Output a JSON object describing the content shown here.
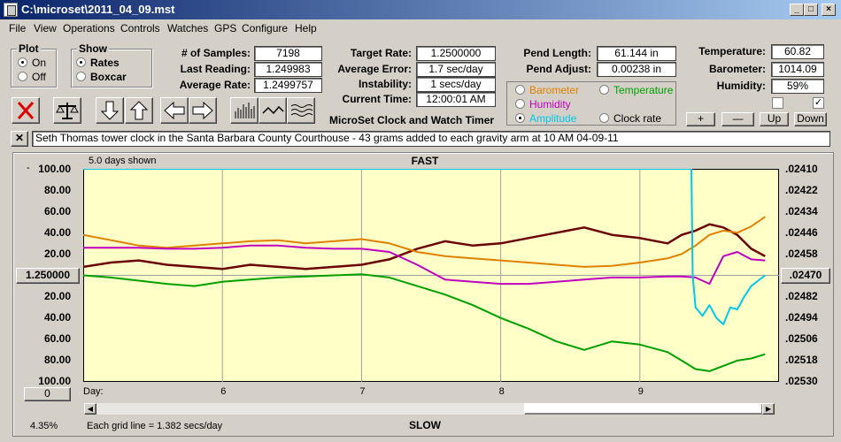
{
  "window": {
    "title": "C:\\microset\\2011_04_09.mst"
  },
  "menu": [
    "File",
    "View",
    "Operations",
    "Controls",
    "Watches",
    "GPS",
    "Configure",
    "Help"
  ],
  "plot_group": {
    "label": "Plot",
    "on": "On",
    "off": "Off",
    "selected": "On"
  },
  "show_group": {
    "label": "Show",
    "rates": "Rates",
    "boxcar": "Boxcar",
    "selected": "Rates"
  },
  "stats": {
    "samples_label": "# of Samples:",
    "samples": "7198",
    "last_label": "Last Reading:",
    "last": "1.249983",
    "avg_rate_label": "Average Rate:",
    "avg_rate": "1.2499757",
    "target_label": "Target Rate:",
    "target": "1.2500000",
    "avg_err_label": "Average Error:",
    "avg_err": "1.7 sec/day",
    "instab_label": "Instability:",
    "instab": "1 secs/day",
    "time_label": "Current Time:",
    "time": "12:00:01 AM",
    "pend_len_label": "Pend Length:",
    "pend_len": "61.144 in",
    "pend_adj_label": "Pend Adjust:",
    "pend_adj": "0.00238 in",
    "temp_label": "Temperature:",
    "temp": "60.82",
    "baro_label": "Barometer:",
    "baro": "1014.09",
    "hum_label": "Humidity:",
    "hum": "59%"
  },
  "app_name": "MicroSet Clock and Watch Timer",
  "series_select": {
    "barometer": "Barometer",
    "temperature": "Temperature",
    "humidity": "Humidity",
    "amplitude": "Amplitude",
    "clock_rate": "Clock rate",
    "selected": "Amplitude",
    "colors": {
      "barometer": "#e08000",
      "temperature": "#00a000",
      "humidity": "#c000c0",
      "amplitude": "#00c8e8",
      "clock_rate": "#000000"
    }
  },
  "adjust_buttons": {
    "plus": "+",
    "minus": "—",
    "up": "Up",
    "down": "Down"
  },
  "note": "Seth Thomas tower clock in the Santa Barbara County Courthouse - 43 grams added to each gravity arm at 10 AM 04-09-11",
  "chart": {
    "days_shown": "5.0 days shown",
    "fast_label": "FAST",
    "slow_label": "SLOW",
    "center_value": "1.250000",
    "center_right": ".02470",
    "zero_button": "0",
    "grid_text": "Each grid line = 1.382 secs/day",
    "percent": "4.35%",
    "day_prefix": "Day:"
  },
  "chart_data": {
    "type": "line",
    "xlabel": "Day:",
    "x_ticks": [
      "6",
      "7",
      "8",
      "9"
    ],
    "xlim": [
      5.0,
      10.0
    ],
    "ylim": [
      -100,
      100
    ],
    "left_ticks": [
      "100.00",
      "80.00",
      "60.00",
      "40.00",
      "20.00",
      "",
      "20.00",
      "40.00",
      "60.00",
      "80.00",
      "100.00"
    ],
    "right_ticks": [
      ".02410",
      ".02422",
      ".02434",
      ".02446",
      ".02458",
      "",
      ".02482",
      ".02494",
      ".02506",
      ".02518",
      ".02530"
    ],
    "series": [
      {
        "key": "clock_rate",
        "color": "#6b0000",
        "x": [
          5.0,
          5.2,
          5.4,
          5.6,
          5.8,
          6.0,
          6.2,
          6.4,
          6.6,
          6.8,
          7.0,
          7.2,
          7.4,
          7.6,
          7.8,
          8.0,
          8.2,
          8.4,
          8.6,
          8.8,
          9.0,
          9.2,
          9.3,
          9.4,
          9.5,
          9.6,
          9.7,
          9.8,
          9.9
        ],
        "y": [
          8,
          12,
          14,
          10,
          8,
          6,
          10,
          8,
          6,
          8,
          10,
          15,
          25,
          32,
          28,
          30,
          35,
          40,
          45,
          38,
          35,
          30,
          38,
          42,
          48,
          45,
          38,
          25,
          18
        ]
      },
      {
        "key": "barometer",
        "color": "#e08000",
        "x": [
          5.0,
          5.2,
          5.4,
          5.6,
          5.8,
          6.0,
          6.2,
          6.4,
          6.6,
          6.8,
          7.0,
          7.2,
          7.4,
          7.6,
          7.8,
          8.0,
          8.2,
          8.4,
          8.6,
          8.8,
          9.0,
          9.2,
          9.3,
          9.4,
          9.5,
          9.6,
          9.7,
          9.8,
          9.9
        ],
        "y": [
          38,
          33,
          28,
          26,
          28,
          30,
          32,
          33,
          30,
          32,
          34,
          30,
          22,
          18,
          16,
          14,
          12,
          10,
          8,
          9,
          12,
          16,
          20,
          28,
          38,
          42,
          40,
          46,
          55
        ]
      },
      {
        "key": "humidity",
        "color": "#c000c0",
        "x": [
          5.0,
          5.2,
          5.4,
          5.6,
          5.8,
          6.0,
          6.2,
          6.4,
          6.6,
          6.8,
          7.0,
          7.2,
          7.4,
          7.6,
          7.8,
          8.0,
          8.2,
          8.4,
          8.6,
          8.8,
          9.0,
          9.2,
          9.3,
          9.4,
          9.5,
          9.6,
          9.7,
          9.8,
          9.9
        ],
        "y": [
          26,
          26,
          26,
          25,
          25,
          26,
          28,
          28,
          26,
          25,
          25,
          22,
          10,
          -4,
          -6,
          -8,
          -8,
          -6,
          -4,
          -2,
          -2,
          -1,
          -1,
          -2,
          -8,
          18,
          22,
          15,
          14
        ]
      },
      {
        "key": "temperature",
        "color": "#00a000",
        "x": [
          5.0,
          5.2,
          5.4,
          5.6,
          5.8,
          6.0,
          6.2,
          6.4,
          6.6,
          6.8,
          7.0,
          7.2,
          7.4,
          7.6,
          7.8,
          8.0,
          8.2,
          8.4,
          8.6,
          8.8,
          9.0,
          9.2,
          9.3,
          9.4,
          9.5,
          9.6,
          9.7,
          9.8,
          9.9
        ],
        "y": [
          0,
          -2,
          -5,
          -8,
          -10,
          -6,
          -4,
          -2,
          -1,
          0,
          1,
          -2,
          -10,
          -18,
          -28,
          -40,
          -50,
          -62,
          -70,
          -62,
          -65,
          -72,
          -80,
          -88,
          -90,
          -85,
          -80,
          -78,
          -74
        ]
      },
      {
        "key": "amplitude",
        "color": "#00c8e8",
        "x": [
          5.0,
          9.37,
          9.38,
          9.4,
          9.45,
          9.5,
          9.55,
          9.6,
          9.65,
          9.7,
          9.75,
          9.8,
          9.85,
          9.9
        ],
        "y": [
          100,
          100,
          0,
          -30,
          -38,
          -28,
          -40,
          -46,
          -30,
          -32,
          -20,
          -10,
          -5,
          0
        ]
      }
    ]
  }
}
